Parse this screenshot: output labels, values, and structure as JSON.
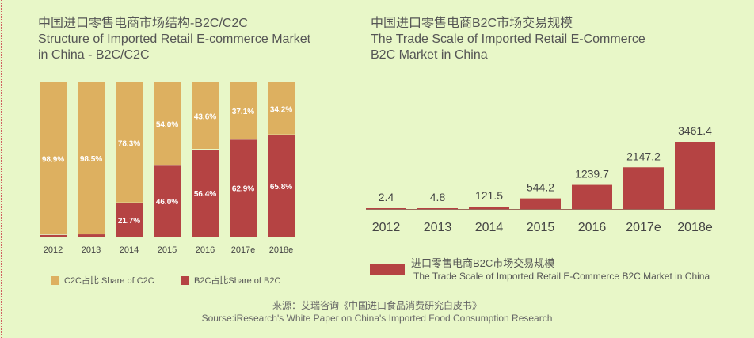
{
  "left_title": {
    "zh": "中国进口零售电商市场结构-B2C/C2C",
    "en1": "Structure of Imported Retail E-commerce Market",
    "en2": "in China - B2C/C2C"
  },
  "right_title": {
    "zh": "中国进口零售电商B2C市场交易规模",
    "en1": "The Trade Scale  of Imported Retail E-Commerce",
    "en2": "B2C Market in China"
  },
  "colors": {
    "c2c": "#ddb060",
    "b2c": "#b54343",
    "bg": "#e8f7c8"
  },
  "chart_data": [
    {
      "type": "bar",
      "stacked": true,
      "title": "Structure of Imported Retail E-commerce Market in China - B2C/C2C",
      "categories": [
        "2012",
        "2013",
        "2014",
        "2015",
        "2016",
        "2017e",
        "2018e"
      ],
      "series": [
        {
          "name": "B2C占比Share of B2C",
          "values": [
            1.1,
            1.5,
            21.7,
            46.0,
            56.4,
            62.9,
            65.8
          ],
          "labels": [
            "",
            "",
            "21.7%",
            "46.0%",
            "56.4%",
            "62.9%",
            "65.8%"
          ]
        },
        {
          "name": "C2C占比 Share of C2C",
          "values": [
            98.9,
            98.5,
            78.3,
            54.0,
            43.6,
            37.1,
            34.2
          ],
          "labels": [
            "98.9%",
            "98.5%",
            "78.3%",
            "54.0%",
            "43.6%",
            "37.1%",
            "34.2%"
          ]
        }
      ],
      "ylim": [
        0,
        100
      ],
      "legend": "bottom"
    },
    {
      "type": "bar",
      "title": "The Trade Scale of Imported Retail E-Commerce B2C Market in China",
      "categories": [
        "2012",
        "2013",
        "2014",
        "2015",
        "2016",
        "2017e",
        "2018e"
      ],
      "values": [
        2.4,
        4.8,
        121.5,
        544.2,
        1239.7,
        2147.2,
        3461.4
      ],
      "labels": [
        "2.4",
        "4.8",
        "121.5",
        "544.2",
        "1239.7",
        "2147.2",
        "3461.4"
      ],
      "legend": "bottom",
      "legend_zh": "进口零售电商B2C市场交易规模",
      "legend_en": "The Trade Scale of Imported Retail E-Commerce B2C Market in China"
    }
  ],
  "legend": {
    "c2c": "C2C占比 Share of C2C",
    "b2c": "B2C占比Share of B2C"
  },
  "source": {
    "zh": "来源：艾瑞咨询《中国进口食品消费研究白皮书》",
    "en": "Sourse:iResearch's White Paper on China's Imported Food Consumption Research"
  }
}
